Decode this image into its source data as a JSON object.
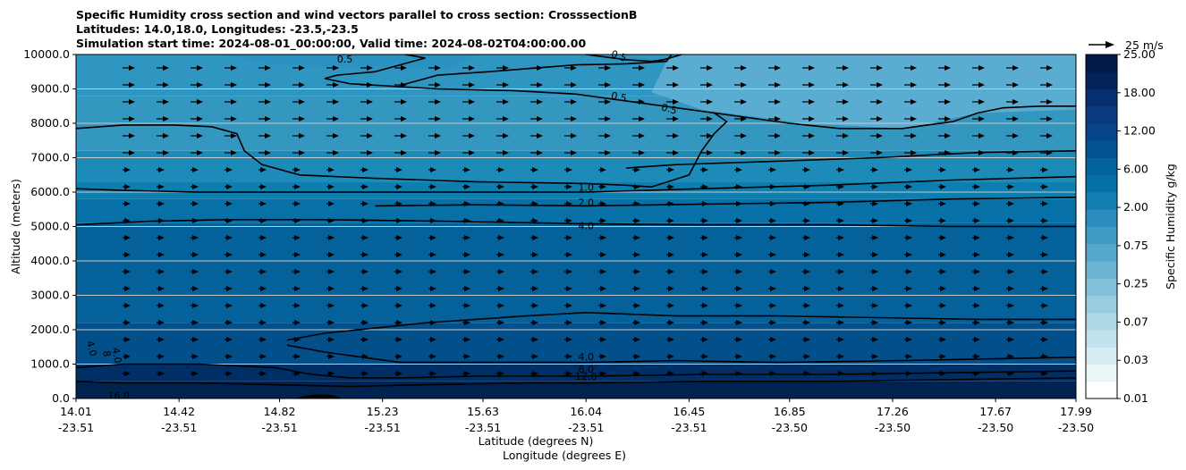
{
  "chart_data": {
    "type": "contour",
    "title": [
      "Specific Humidity cross section and wind vectors parallel to cross section: CrosssectionB",
      "Latitudes: 14.0,18.0, Longitudes: -23.5,-23.5",
      "Simulation start time: 2024-08-01_00:00:00, Valid time: 2024-08-02T04:00:00.00"
    ],
    "ylabel": "Altitude (meters)",
    "xlabel_lat": "Latitude (degrees N)",
    "xlabel_lon": "Longitude (degrees E)",
    "ylim": [
      0,
      10000
    ],
    "yticks": [
      "0.0",
      "1000.0",
      "2000.0",
      "3000.0",
      "4000.0",
      "5000.0",
      "6000.0",
      "7000.0",
      "8000.0",
      "9000.0",
      "10000.0"
    ],
    "xticks_lat": [
      "14.01",
      "14.42",
      "14.82",
      "15.23",
      "15.63",
      "16.04",
      "16.45",
      "16.85",
      "17.26",
      "17.67",
      "17.99"
    ],
    "xticks_lon": [
      "-23.51",
      "-23.51",
      "-23.51",
      "-23.51",
      "-23.51",
      "-23.51",
      "-23.51",
      "-23.50",
      "-23.50",
      "-23.50",
      "-23.50"
    ],
    "colorbar": {
      "label": "Specific Humidity g/kg",
      "ticks": [
        "0.01",
        "0.03",
        "0.07",
        "0.25",
        "0.75",
        "2.00",
        "6.00",
        "12.00",
        "18.00",
        "25.00"
      ]
    },
    "quiver_key": "25 m/s",
    "contour_labels": [
      {
        "text": "0.5",
        "x": 15.08,
        "y": 9850,
        "rot": 0
      },
      {
        "text": "0.5",
        "x": 16.17,
        "y": 9940,
        "rot": 20
      },
      {
        "text": "0.5",
        "x": 16.17,
        "y": 8750,
        "rot": 12
      },
      {
        "text": "0.5",
        "x": 16.37,
        "y": 8400,
        "rot": 15
      },
      {
        "text": "1.0",
        "x": 16.04,
        "y": 6120,
        "rot": 0
      },
      {
        "text": "2.0",
        "x": 16.04,
        "y": 5680,
        "rot": 0
      },
      {
        "text": "4.0",
        "x": 16.04,
        "y": 5000,
        "rot": 0
      },
      {
        "text": "4.0",
        "x": 16.04,
        "y": 1200,
        "rot": 0
      },
      {
        "text": "8.0",
        "x": 16.04,
        "y": 830,
        "rot": 0
      },
      {
        "text": "12.0",
        "x": 16.04,
        "y": 620,
        "rot": 0
      },
      {
        "text": "16.0",
        "x": 14.18,
        "y": 70,
        "rot": 0
      },
      {
        "text": "4.0",
        "x": 14.07,
        "y": 1450,
        "rot": 75
      },
      {
        "text": "4.0",
        "x": 14.17,
        "y": 1250,
        "rot": 80
      },
      {
        "text": "8",
        "x": 14.13,
        "y": 1300,
        "rot": 80
      }
    ],
    "contours": [
      {
        "level": "0.5",
        "points": [
          [
            16.04,
            10000
          ],
          [
            16.2,
            9850
          ],
          [
            16.3,
            9800
          ],
          [
            16.35,
            9850
          ],
          [
            16.42,
            10000
          ]
        ]
      },
      {
        "level": "0.5",
        "points": [
          [
            15.32,
            10000
          ],
          [
            15.4,
            9900
          ],
          [
            15.2,
            9500
          ],
          [
            15.05,
            9400
          ],
          [
            15.0,
            9300
          ],
          [
            15.1,
            9150
          ],
          [
            15.45,
            9000
          ],
          [
            15.75,
            8950
          ],
          [
            16.0,
            8850
          ],
          [
            16.4,
            8450
          ],
          [
            16.55,
            8300
          ],
          [
            16.85,
            8000
          ],
          [
            17.05,
            7850
          ],
          [
            17.3,
            7850
          ],
          [
            17.5,
            8050
          ],
          [
            17.6,
            8300
          ],
          [
            17.7,
            8450
          ],
          [
            17.85,
            8500
          ],
          [
            17.99,
            8500
          ]
        ]
      },
      {
        "level": "0.5",
        "points": [
          [
            15.3,
            9100
          ],
          [
            15.45,
            9400
          ],
          [
            15.65,
            9500
          ],
          [
            16.0,
            9700
          ],
          [
            16.2,
            9730
          ],
          [
            16.36,
            9800
          ],
          [
            16.38,
            10000
          ]
        ]
      },
      {
        "level": "1.0",
        "points": [
          [
            14.01,
            7850
          ],
          [
            14.2,
            7950
          ],
          [
            14.4,
            7950
          ],
          [
            14.55,
            7900
          ],
          [
            14.65,
            7700
          ],
          [
            14.68,
            7200
          ],
          [
            14.75,
            6800
          ],
          [
            14.9,
            6500
          ],
          [
            15.2,
            6400
          ],
          [
            15.6,
            6300
          ],
          [
            16.04,
            6250
          ],
          [
            16.2,
            6200
          ],
          [
            16.3,
            6150
          ],
          [
            16.45,
            6500
          ],
          [
            16.5,
            7200
          ],
          [
            16.55,
            7700
          ],
          [
            16.6,
            8050
          ],
          [
            16.55,
            8300
          ]
        ]
      },
      {
        "level": "1.0",
        "points": [
          [
            16.2,
            6700
          ],
          [
            16.4,
            6800
          ],
          [
            16.8,
            6900
          ],
          [
            17.2,
            7000
          ],
          [
            17.6,
            7150
          ],
          [
            17.99,
            7200
          ]
        ]
      },
      {
        "level": "2.0",
        "points": [
          [
            14.01,
            6100
          ],
          [
            14.2,
            6050
          ],
          [
            14.5,
            6000
          ],
          [
            15.0,
            6000
          ],
          [
            15.5,
            6000
          ],
          [
            16.04,
            6000
          ],
          [
            16.5,
            6100
          ],
          [
            17.0,
            6200
          ],
          [
            17.5,
            6350
          ],
          [
            17.99,
            6450
          ]
        ]
      },
      {
        "level": "4.0",
        "points": [
          [
            14.01,
            5050
          ],
          [
            14.3,
            5150
          ],
          [
            14.6,
            5200
          ],
          [
            15.0,
            5200
          ],
          [
            15.5,
            5150
          ],
          [
            16.04,
            5080
          ],
          [
            16.5,
            5050
          ],
          [
            17.0,
            5050
          ],
          [
            17.5,
            5000
          ],
          [
            17.99,
            5000
          ]
        ]
      },
      {
        "level": "4.0",
        "points": [
          [
            15.2,
            5600
          ],
          [
            15.6,
            5630
          ],
          [
            16.04,
            5600
          ],
          [
            16.5,
            5650
          ],
          [
            17.0,
            5700
          ],
          [
            17.5,
            5800
          ],
          [
            17.99,
            5850
          ]
        ]
      },
      {
        "level": "4.0",
        "points": [
          [
            14.85,
            1700
          ],
          [
            15.0,
            1900
          ],
          [
            15.4,
            2200
          ],
          [
            15.8,
            2400
          ],
          [
            16.04,
            2500
          ],
          [
            16.4,
            2400
          ],
          [
            16.8,
            2400
          ],
          [
            17.2,
            2350
          ],
          [
            17.6,
            2300
          ],
          [
            17.99,
            2300
          ]
        ]
      },
      {
        "level": "8.0",
        "points": [
          [
            14.85,
            1550
          ],
          [
            15.0,
            1350
          ],
          [
            15.1,
            1250
          ],
          [
            15.3,
            1050
          ],
          [
            15.6,
            1050
          ],
          [
            16.04,
            1050
          ],
          [
            16.4,
            1100
          ],
          [
            16.8,
            1050
          ],
          [
            17.3,
            1100
          ],
          [
            17.99,
            1200
          ]
        ]
      },
      {
        "level": "12.0",
        "points": [
          [
            14.01,
            900
          ],
          [
            14.2,
            1000
          ],
          [
            14.5,
            1000
          ],
          [
            14.8,
            900
          ],
          [
            14.95,
            700
          ],
          [
            15.1,
            600
          ],
          [
            15.3,
            600
          ],
          [
            15.6,
            650
          ],
          [
            16.04,
            650
          ],
          [
            16.5,
            700
          ],
          [
            17.0,
            700
          ],
          [
            17.5,
            750
          ],
          [
            17.99,
            800
          ]
        ]
      },
      {
        "level": "16.0",
        "points": [
          [
            14.01,
            500
          ],
          [
            14.2,
            450
          ],
          [
            14.5,
            450
          ],
          [
            14.8,
            400
          ],
          [
            15.1,
            350
          ],
          [
            15.4,
            400
          ],
          [
            15.8,
            450
          ],
          [
            16.04,
            450
          ],
          [
            16.5,
            500
          ],
          [
            17.0,
            500
          ],
          [
            17.5,
            550
          ],
          [
            17.99,
            600
          ]
        ]
      }
    ]
  }
}
